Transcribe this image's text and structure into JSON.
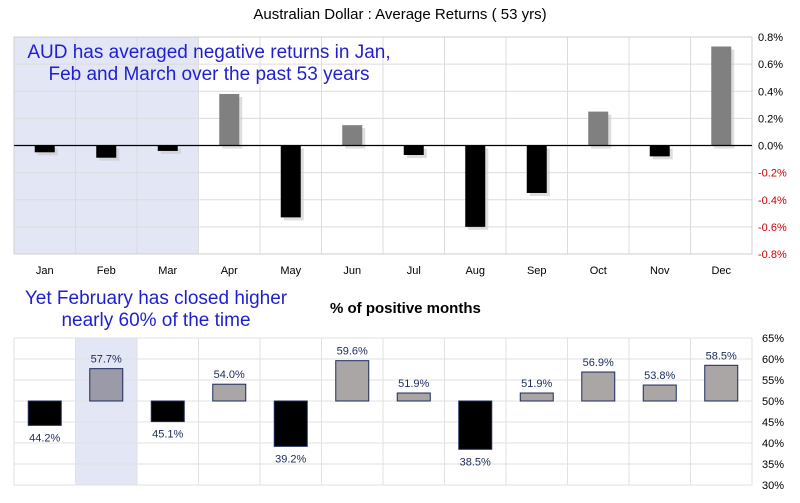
{
  "chart_data": [
    {
      "type": "bar",
      "title": "Australian Dollar : Average Returns ( 53 yrs)",
      "categories": [
        "Jan",
        "Feb",
        "Mar",
        "Apr",
        "May",
        "Jun",
        "Jul",
        "Aug",
        "Sep",
        "Oct",
        "Nov",
        "Dec"
      ],
      "values": [
        -0.05,
        -0.09,
        -0.04,
        0.38,
        -0.53,
        0.15,
        -0.07,
        -0.6,
        -0.35,
        0.25,
        -0.08,
        0.73
      ],
      "unit": "%",
      "ylim": [
        -0.8,
        0.8
      ],
      "ytick_labels": [
        "0.8%",
        "0.6%",
        "0.4%",
        "0.2%",
        "0.0%",
        "-0.2%",
        "-0.4%",
        "-0.6%",
        "-0.8%"
      ],
      "grid": true,
      "highlight_categories": [
        "Jan",
        "Feb",
        "Mar"
      ],
      "colors": {
        "positive": "#808080",
        "negative": "#000000",
        "negative_tick": "#cc0000",
        "highlight": "#e3e6f5"
      },
      "annotation": "AUD has averaged negative returns in Jan, Feb and March over the past 53 years"
    },
    {
      "type": "bar",
      "title": "% of positive months",
      "categories": [
        "Jan",
        "Feb",
        "Mar",
        "Apr",
        "May",
        "Jun",
        "Jul",
        "Aug",
        "Sep",
        "Oct",
        "Nov",
        "Dec"
      ],
      "values": [
        44.2,
        57.7,
        45.1,
        54.0,
        39.2,
        59.6,
        51.9,
        38.5,
        51.9,
        56.9,
        53.8,
        58.5
      ],
      "data_labels": [
        "44.2%",
        "57.7%",
        "45.1%",
        "54.0%",
        "39.2%",
        "59.6%",
        "51.9%",
        "38.5%",
        "51.9%",
        "56.9%",
        "53.8%",
        "58.5%"
      ],
      "baseline": 50,
      "ylim": [
        30,
        65
      ],
      "ytick_labels": [
        "65%",
        "60%",
        "55%",
        "50%",
        "45%",
        "40%",
        "35%",
        "30%"
      ],
      "grid": true,
      "highlight_categories": [
        "Feb"
      ],
      "colors": {
        "above": "#aaa6a6",
        "above_highlight": "#9a9aa8",
        "below": "#000000",
        "label": "#1a2a5a",
        "highlight": "#e3e6f5"
      },
      "annotation": "Yet February has closed higher nearly 60% of the time"
    }
  ]
}
